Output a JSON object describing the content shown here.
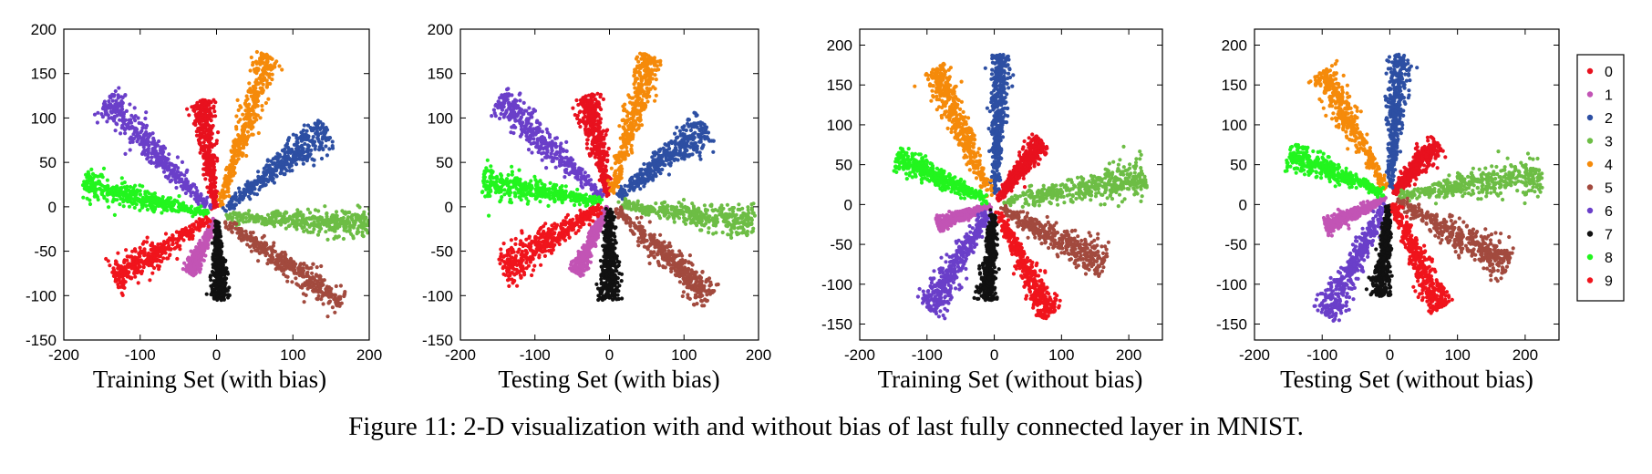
{
  "figure_caption": "Figure 11: 2-D visualization with and without bias of last fully connected layer in MNIST.",
  "colors": {
    "0": "#e8111e",
    "1": "#c254b5",
    "2": "#2d4fa3",
    "3": "#6dbd45",
    "4": "#f58a0a",
    "5": "#a24a3e",
    "6": "#6a3fc9",
    "7": "#111111",
    "8": "#22f51e",
    "9": "#f0141c"
  },
  "legend": {
    "entries": [
      "0",
      "1",
      "2",
      "3",
      "4",
      "5",
      "6",
      "7",
      "8",
      "9"
    ],
    "placement": "right of last panel"
  },
  "chart_data": [
    {
      "type": "scatter",
      "title": "Training Set (with bias)",
      "xlim": [
        -200,
        200
      ],
      "ylim": [
        -150,
        200
      ],
      "xticks": [
        -200,
        -100,
        0,
        100,
        200
      ],
      "yticks": [
        -150,
        -100,
        -50,
        0,
        50,
        100,
        150,
        200
      ],
      "center": [
        0,
        -10
      ],
      "clusters": [
        {
          "label": "0",
          "tip": [
            -20,
            120
          ],
          "width": 12
        },
        {
          "label": "1",
          "tip": [
            -35,
            -75
          ],
          "width": 8
        },
        {
          "label": "2",
          "tip": [
            145,
            88
          ],
          "width": 17
        },
        {
          "label": "3",
          "tip": [
            200,
            -20
          ],
          "width": 14
        },
        {
          "label": "4",
          "tip": [
            70,
            170
          ],
          "width": 15
        },
        {
          "label": "5",
          "tip": [
            165,
            -108
          ],
          "width": 15
        },
        {
          "label": "6",
          "tip": [
            -145,
            120
          ],
          "width": 17
        },
        {
          "label": "7",
          "tip": [
            5,
            -105
          ],
          "width": 10
        },
        {
          "label": "8",
          "tip": [
            -175,
            25
          ],
          "width": 14
        },
        {
          "label": "9",
          "tip": [
            -135,
            -80
          ],
          "width": 17
        }
      ]
    },
    {
      "type": "scatter",
      "title": "Testing Set (with bias)",
      "xlim": [
        -200,
        200
      ],
      "ylim": [
        -150,
        200
      ],
      "xticks": [
        -200,
        -100,
        0,
        100,
        200
      ],
      "yticks": [
        -150,
        -100,
        -50,
        0,
        50,
        100,
        150,
        200
      ],
      "center": [
        0,
        5
      ],
      "clusters": [
        {
          "label": "0",
          "tip": [
            -30,
            125
          ],
          "width": 14
        },
        {
          "label": "1",
          "tip": [
            -45,
            -75
          ],
          "width": 9
        },
        {
          "label": "2",
          "tip": [
            130,
            90
          ],
          "width": 17
        },
        {
          "label": "3",
          "tip": [
            195,
            -20
          ],
          "width": 15
        },
        {
          "label": "4",
          "tip": [
            55,
            170
          ],
          "width": 16
        },
        {
          "label": "5",
          "tip": [
            135,
            -103
          ],
          "width": 16
        },
        {
          "label": "6",
          "tip": [
            -150,
            120
          ],
          "width": 18
        },
        {
          "label": "7",
          "tip": [
            0,
            -105
          ],
          "width": 12
        },
        {
          "label": "8",
          "tip": [
            -170,
            28
          ],
          "width": 15
        },
        {
          "label": "9",
          "tip": [
            -145,
            -70
          ],
          "width": 19
        }
      ]
    },
    {
      "type": "scatter",
      "title": "Training Set (without bias)",
      "xlim": [
        -200,
        250
      ],
      "ylim": [
        -170,
        220
      ],
      "xticks": [
        -200,
        -100,
        0,
        100,
        200
      ],
      "yticks": [
        -150,
        -100,
        -50,
        0,
        50,
        100,
        150,
        200
      ],
      "center": [
        0,
        0
      ],
      "clusters": [
        {
          "label": "0",
          "tip": [
            70,
            80
          ],
          "width": 12
        },
        {
          "label": "1",
          "tip": [
            -85,
            -25
          ],
          "width": 8
        },
        {
          "label": "2",
          "tip": [
            10,
            188
          ],
          "width": 14
        },
        {
          "label": "3",
          "tip": [
            225,
            35
          ],
          "width": 20
        },
        {
          "label": "4",
          "tip": [
            -90,
            170
          ],
          "width": 18
        },
        {
          "label": "5",
          "tip": [
            165,
            -75
          ],
          "width": 20
        },
        {
          "label": "6",
          "tip": [
            -100,
            -130
          ],
          "width": 18
        },
        {
          "label": "7",
          "tip": [
            -12,
            -120
          ],
          "width": 12
        },
        {
          "label": "8",
          "tip": [
            -145,
            60
          ],
          "width": 15
        },
        {
          "label": "9",
          "tip": [
            82,
            -140
          ],
          "width": 16
        }
      ]
    },
    {
      "type": "scatter",
      "title": "Testing Set (without bias)",
      "xlim": [
        -200,
        250
      ],
      "ylim": [
        -170,
        220
      ],
      "xticks": [
        -200,
        -100,
        0,
        100,
        200
      ],
      "yticks": [
        -150,
        -100,
        -50,
        0,
        50,
        100,
        150,
        200
      ],
      "center": [
        0,
        10
      ],
      "clusters": [
        {
          "label": "0",
          "tip": [
            70,
            78
          ],
          "width": 14
        },
        {
          "label": "1",
          "tip": [
            -95,
            -28
          ],
          "width": 9
        },
        {
          "label": "2",
          "tip": [
            15,
            188
          ],
          "width": 15
        },
        {
          "label": "3",
          "tip": [
            225,
            38
          ],
          "width": 20
        },
        {
          "label": "4",
          "tip": [
            -100,
            168
          ],
          "width": 18
        },
        {
          "label": "5",
          "tip": [
            175,
            -75
          ],
          "width": 20
        },
        {
          "label": "6",
          "tip": [
            -95,
            -140
          ],
          "width": 19
        },
        {
          "label": "7",
          "tip": [
            -15,
            -115
          ],
          "width": 12
        },
        {
          "label": "8",
          "tip": [
            -150,
            65
          ],
          "width": 15
        },
        {
          "label": "9",
          "tip": [
            75,
            -130
          ],
          "width": 17
        }
      ]
    }
  ]
}
